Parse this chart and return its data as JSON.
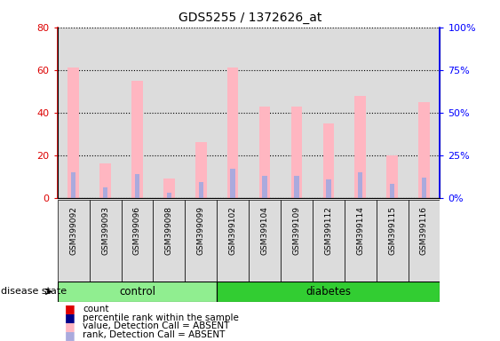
{
  "title": "GDS5255 / 1372626_at",
  "samples": [
    "GSM399092",
    "GSM399093",
    "GSM399096",
    "GSM399098",
    "GSM399099",
    "GSM399102",
    "GSM399104",
    "GSM399109",
    "GSM399112",
    "GSM399114",
    "GSM399115",
    "GSM399116"
  ],
  "pink_values": [
    61,
    16,
    55,
    9,
    26,
    61,
    43,
    43,
    35,
    48,
    20,
    45
  ],
  "blue_values": [
    15,
    6,
    14,
    3,
    9,
    17,
    13,
    13,
    11,
    15,
    8,
    12
  ],
  "groups": [
    {
      "label": "control",
      "start": 0,
      "end": 5,
      "color": "#90EE90"
    },
    {
      "label": "diabetes",
      "start": 5,
      "end": 12,
      "color": "#32CD32"
    }
  ],
  "ylim_left": [
    0,
    80
  ],
  "ylim_right": [
    0,
    100
  ],
  "yticks_left": [
    0,
    20,
    40,
    60,
    80
  ],
  "yticks_right": [
    0,
    25,
    50,
    75,
    100
  ],
  "ytick_labels_right": [
    "0%",
    "25%",
    "50%",
    "75%",
    "100%"
  ],
  "pink_color": "#FFB6C1",
  "blue_color": "#AAAADD",
  "red_color": "#DD0000",
  "dark_blue_color": "#000088",
  "bg_color": "#DCDCDC",
  "white_bg": "#FFFFFF",
  "legend_items": [
    {
      "color": "#DD0000",
      "label": "count"
    },
    {
      "color": "#000088",
      "label": "percentile rank within the sample"
    },
    {
      "color": "#FFB6C1",
      "label": "value, Detection Call = ABSENT"
    },
    {
      "color": "#AAAADD",
      "label": "rank, Detection Call = ABSENT"
    }
  ],
  "group_label": "disease state"
}
